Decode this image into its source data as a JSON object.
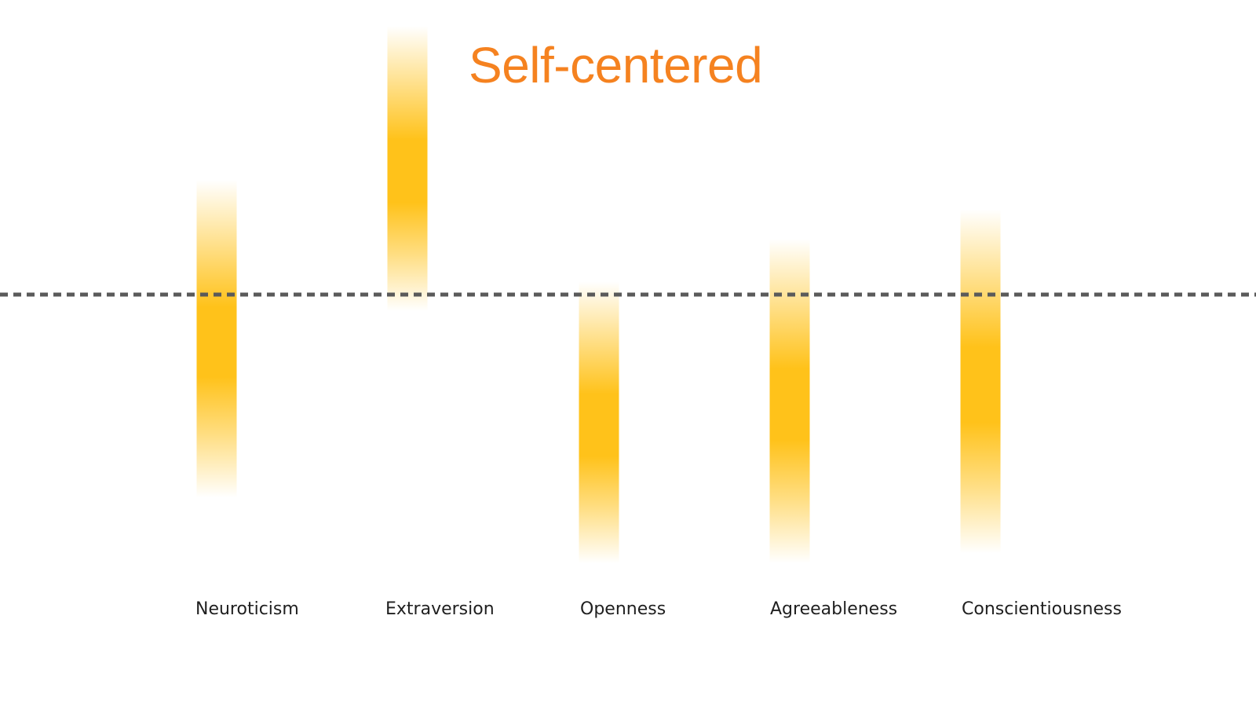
{
  "chart_data": {
    "type": "bar",
    "title": "Self-centered",
    "categories": [
      "Neuroticism",
      "Extraversion",
      "Openness",
      "Agreeableness",
      "Conscientiousness"
    ],
    "ranges": [
      {
        "low": -0.62,
        "high": 0.35
      },
      {
        "low": -0.05,
        "high": 0.82
      },
      {
        "low": -0.82,
        "high": 0.04
      },
      {
        "low": -0.82,
        "high": 0.17
      },
      {
        "low": -0.79,
        "high": 0.26
      }
    ],
    "reference_line": 0,
    "ylim": [
      -1,
      1
    ],
    "grid": false,
    "legend": "none"
  },
  "colors": {
    "bar": "#FFC21A",
    "title": "#F58220",
    "reference_line": "#5a5a5a",
    "label": "#1f1f1f"
  }
}
